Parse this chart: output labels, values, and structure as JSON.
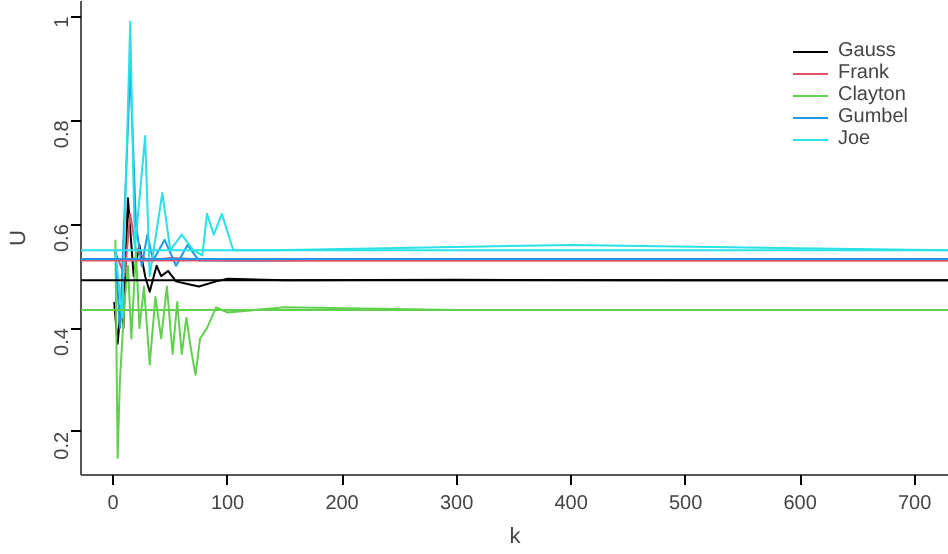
{
  "chart_data": {
    "type": "line",
    "xlabel": "k",
    "ylabel": "U",
    "xlim": [
      -28,
      730
    ],
    "ylim": [
      0.117,
      1.03
    ],
    "xticks": [
      0,
      100,
      200,
      300,
      400,
      500,
      600,
      700
    ],
    "yticks": [
      0.2,
      0.4,
      0.6,
      0.8,
      1.0
    ],
    "grid": false,
    "legend": "top right",
    "series": [
      {
        "name": "Gauss",
        "color": "#000000",
        "x": [
          1,
          4,
          7,
          9,
          13,
          18,
          23,
          28,
          32,
          38,
          42,
          48,
          55,
          65,
          75,
          90,
          100,
          150,
          300,
          500,
          730
        ],
        "values": [
          0.45,
          0.37,
          0.45,
          0.4,
          0.65,
          0.5,
          0.56,
          0.5,
          0.47,
          0.52,
          0.5,
          0.51,
          0.49,
          0.485,
          0.48,
          0.49,
          0.495,
          0.492,
          0.493,
          0.492,
          0.492
        ]
      },
      {
        "name": "Frank",
        "color": "#df536b",
        "x": [
          1,
          5,
          10,
          15,
          20,
          30,
          50,
          100,
          300,
          730
        ],
        "values": [
          0.55,
          0.53,
          0.5,
          0.62,
          0.55,
          0.53,
          0.535,
          0.53,
          0.53,
          0.53
        ]
      },
      {
        "name": "Clayton",
        "color": "#61d04f",
        "x": [
          2,
          4,
          6,
          10,
          13,
          16,
          20,
          23,
          27,
          32,
          37,
          42,
          47,
          52,
          56,
          60,
          64,
          68,
          72,
          76,
          82,
          90,
          100,
          150,
          300,
          500,
          730
        ],
        "values": [
          0.57,
          0.15,
          0.3,
          0.45,
          0.52,
          0.38,
          0.55,
          0.4,
          0.48,
          0.33,
          0.46,
          0.38,
          0.48,
          0.35,
          0.45,
          0.35,
          0.42,
          0.36,
          0.31,
          0.38,
          0.4,
          0.44,
          0.43,
          0.44,
          0.435,
          0.435,
          0.435
        ]
      },
      {
        "name": "Gumbel",
        "color": "#2297e6",
        "x": [
          2,
          6,
          15,
          20,
          25,
          30,
          35,
          45,
          55,
          65,
          75,
          100,
          300,
          730
        ],
        "values": [
          0.55,
          0.4,
          0.9,
          0.6,
          0.52,
          0.58,
          0.53,
          0.57,
          0.52,
          0.56,
          0.53,
          0.53,
          0.533,
          0.533
        ]
      },
      {
        "name": "Joe",
        "color": "#28e2e5",
        "x": [
          2,
          8,
          15,
          19,
          28,
          32,
          43,
          50,
          60,
          70,
          78,
          82,
          88,
          95,
          105,
          140,
          400,
          730
        ],
        "values": [
          0.55,
          0.42,
          0.99,
          0.55,
          0.77,
          0.5,
          0.66,
          0.55,
          0.58,
          0.55,
          0.54,
          0.62,
          0.58,
          0.62,
          0.55,
          0.55,
          0.56,
          0.55
        ]
      }
    ],
    "ref_lines": [
      {
        "axis": "y",
        "value": 0.492,
        "color": "#000000"
      },
      {
        "axis": "y",
        "value": 0.53,
        "color": "#df536b"
      },
      {
        "axis": "y",
        "value": 0.435,
        "color": "#61d04f"
      },
      {
        "axis": "y",
        "value": 0.533,
        "color": "#2297e6"
      },
      {
        "axis": "y",
        "value": 0.55,
        "color": "#28e2e5"
      }
    ]
  }
}
